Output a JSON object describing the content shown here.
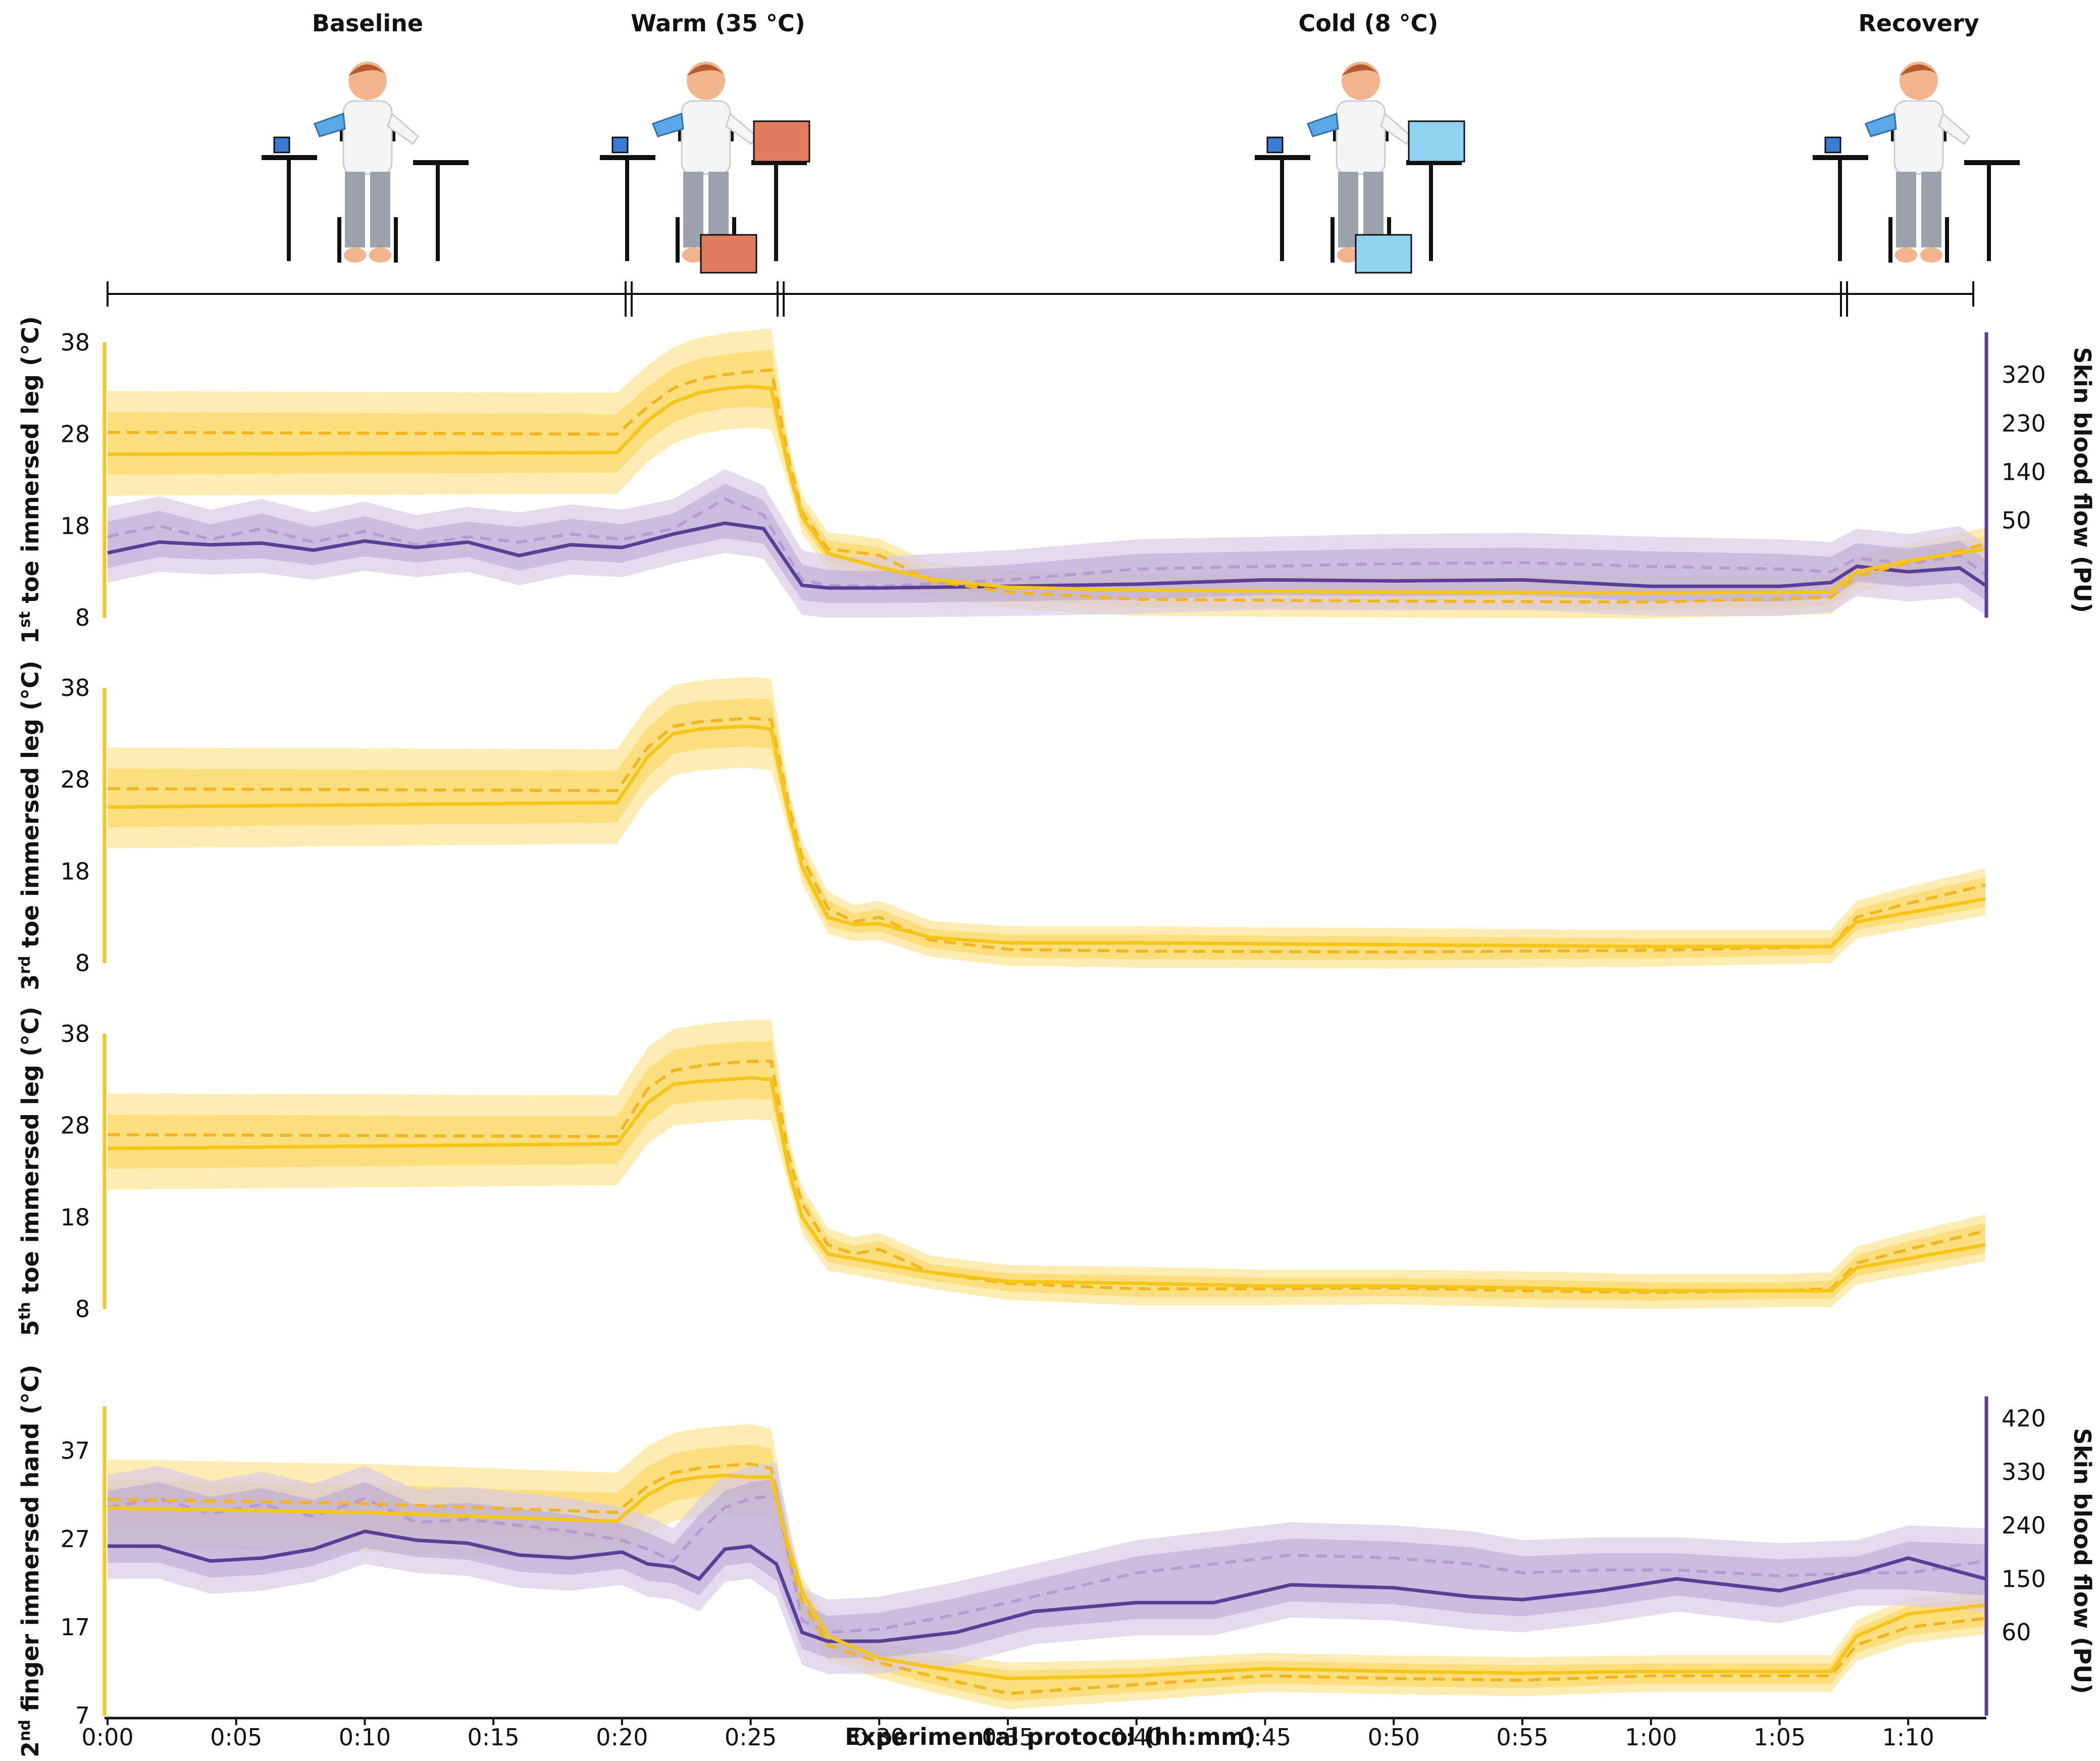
{
  "phases": [
    {
      "label": "Baseline"
    },
    {
      "label": "Warm (35 °C)"
    },
    {
      "label": "Cold (8 °C)"
    },
    {
      "label": "Recovery"
    }
  ],
  "colors": {
    "temperature": "#F5C518",
    "temp_band_light": "#FDE79A",
    "temp_band_dark": "#F9D45A",
    "blood_flow": "#5B3E96",
    "bf_band_light": "#D9CCE8",
    "bf_band_dark": "#B7A4D4",
    "bf_dashed": "#B79BD0"
  },
  "x_axis": {
    "title": "Experimental protocol (hh:mm)",
    "ticks": [
      "0:00",
      "0:05",
      "0:10",
      "0:15",
      "0:20",
      "0:25",
      "0:30",
      "0:35",
      "0:40",
      "0:45",
      "0:50",
      "0:55",
      "1:00",
      "1:05",
      "1:10"
    ],
    "range_min": [
      0,
      73
    ]
  },
  "chart_data": [
    {
      "type": "line",
      "title": "",
      "ylabel": "1st toe immersed leg (°C)",
      "ylabel_main": "1",
      "ylabel_sup": "st",
      "ylabel_rest": " toe immersed leg (°C)",
      "ylim": [
        8,
        38
      ],
      "yticks": [
        "38",
        "28",
        "18",
        "8"
      ],
      "x_minutes": [
        0,
        19.8,
        21,
        22,
        23,
        24,
        25,
        25.8,
        26.5,
        27,
        28,
        30,
        32,
        35,
        40,
        50,
        60,
        67,
        68,
        70,
        73
      ],
      "series": [
        {
          "name": "Temperature solid",
          "values": [
            25.8,
            26.0,
            29.5,
            31.5,
            32.5,
            33.0,
            33.2,
            33.0,
            24.0,
            19.0,
            15.0,
            13.5,
            12.2,
            11.3,
            11.0,
            10.8,
            10.7,
            10.8,
            13.0,
            14.2,
            15.5
          ]
        },
        {
          "name": "Temperature dashed",
          "values": [
            28.2,
            28.0,
            31.0,
            33.0,
            34.0,
            34.5,
            34.8,
            35.0,
            25.0,
            19.5,
            15.5,
            14.8,
            12.0,
            10.8,
            10.0,
            9.8,
            9.7,
            10.2,
            12.5,
            14.0,
            16.0
          ]
        }
      ],
      "secondary_axis": {
        "ylabel": "Skin blood flow (PU)",
        "yticks": [
          "320",
          "230",
          "140",
          "50"
        ],
        "ylim": [
          -130,
          380
        ]
      },
      "bf_x_minutes": [
        0,
        2,
        4,
        6,
        8,
        10,
        12,
        14,
        16,
        18,
        20,
        22,
        24,
        25.5,
        27,
        28,
        30,
        35,
        40,
        45,
        50,
        55,
        60,
        65,
        67,
        68,
        70,
        72,
        73
      ],
      "bf_series": [
        {
          "name": "Blood flow solid",
          "values": [
            -10,
            10,
            5,
            8,
            -5,
            12,
            0,
            10,
            -15,
            5,
            0,
            25,
            45,
            35,
            -70,
            -75,
            -75,
            -72,
            -68,
            -60,
            -62,
            -60,
            -72,
            -72,
            -65,
            -35,
            -45,
            -38,
            -70
          ]
        },
        {
          "name": "Blood flow dashed",
          "values": [
            20,
            40,
            15,
            35,
            10,
            30,
            5,
            20,
            10,
            25,
            15,
            35,
            90,
            60,
            -60,
            -70,
            -72,
            -60,
            -40,
            -35,
            -30,
            -28,
            -35,
            -40,
            -45,
            -20,
            -30,
            -15,
            -50
          ]
        }
      ]
    },
    {
      "type": "line",
      "title": "",
      "ylabel": "3rd toe immersed leg (°C)",
      "ylabel_main": "3",
      "ylabel_sup": "rd",
      "ylabel_rest": " toe immersed leg (°C)",
      "ylim": [
        8,
        38
      ],
      "yticks": [
        "38",
        "28",
        "18",
        "8"
      ],
      "x_minutes": [
        0,
        19.8,
        21,
        22,
        23,
        24,
        25,
        25.8,
        26.5,
        27,
        28,
        29,
        30,
        32,
        35,
        40,
        50,
        60,
        67,
        68,
        70,
        73
      ],
      "series": [
        {
          "name": "Temperature solid",
          "values": [
            25.0,
            25.5,
            30.5,
            33.0,
            33.5,
            33.7,
            33.8,
            33.5,
            24.0,
            18.5,
            13.0,
            12.2,
            12.3,
            10.8,
            10.2,
            10.2,
            10.0,
            9.8,
            9.8,
            12.5,
            13.5,
            15.0
          ]
        },
        {
          "name": "Temperature dashed",
          "values": [
            27.0,
            26.8,
            31.5,
            33.8,
            34.3,
            34.5,
            34.7,
            34.5,
            25.0,
            19.5,
            14.0,
            12.5,
            13.0,
            10.5,
            9.5,
            9.3,
            9.2,
            9.4,
            9.8,
            13.0,
            14.5,
            16.5
          ]
        }
      ]
    },
    {
      "type": "line",
      "title": "",
      "ylabel": "5th toe immersed leg (°C)",
      "ylabel_main": "5",
      "ylabel_sup": "th",
      "ylabel_rest": " toe immersed leg (°C)",
      "ylim": [
        8,
        38
      ],
      "yticks": [
        "38",
        "28",
        "18",
        "8"
      ],
      "x_minutes": [
        0,
        19.8,
        21,
        22,
        23,
        24,
        25,
        25.8,
        26.5,
        27,
        28,
        29,
        30,
        32,
        35,
        40,
        45,
        50,
        55,
        60,
        65,
        67,
        68,
        70,
        73
      ],
      "series": [
        {
          "name": "Temperature solid",
          "values": [
            25.5,
            26.0,
            30.5,
            32.5,
            32.8,
            33.0,
            33.2,
            33.0,
            23.0,
            18.0,
            14.0,
            13.5,
            13.0,
            12.0,
            11.0,
            10.8,
            10.5,
            10.5,
            10.3,
            10.0,
            10.0,
            10.0,
            12.5,
            13.5,
            15.0
          ]
        },
        {
          "name": "Temperature dashed",
          "values": [
            27.0,
            26.8,
            32.0,
            34.0,
            34.5,
            34.8,
            35.0,
            35.0,
            24.5,
            19.5,
            15.0,
            14.0,
            14.5,
            12.0,
            10.8,
            10.2,
            10.2,
            10.3,
            10.0,
            9.8,
            10.0,
            10.2,
            13.0,
            14.5,
            16.5
          ]
        }
      ]
    },
    {
      "type": "line",
      "title": "",
      "ylabel": "2nd finger immersed hand (°C)",
      "ylabel_main": "2",
      "ylabel_sup": "nd",
      "ylabel_rest": " finger immersed hand (°C)",
      "ylim": [
        7,
        42
      ],
      "yticks": [
        "37",
        "27",
        "17",
        "7"
      ],
      "x_minutes": [
        0,
        10,
        19.8,
        21,
        22,
        23,
        24,
        25,
        25.8,
        26.5,
        27,
        28,
        30,
        32,
        35,
        40,
        45,
        50,
        55,
        60,
        65,
        67,
        68,
        70,
        73
      ],
      "series": [
        {
          "name": "Temperature solid",
          "values": [
            30.5,
            30.0,
            29.0,
            32.0,
            33.5,
            34.0,
            34.2,
            34.0,
            34.0,
            26.0,
            21.0,
            16.0,
            13.5,
            12.5,
            11.2,
            11.5,
            12.3,
            12.0,
            11.8,
            12.0,
            12.0,
            12.0,
            16.0,
            18.5,
            19.5
          ]
        },
        {
          "name": "Temperature dashed",
          "values": [
            31.5,
            31.0,
            30.0,
            33.0,
            34.5,
            35.0,
            35.3,
            35.5,
            35.0,
            25.0,
            20.0,
            15.0,
            13.0,
            11.5,
            9.5,
            10.5,
            11.5,
            11.2,
            11.0,
            11.5,
            11.5,
            11.5,
            15.0,
            17.0,
            18.0
          ]
        }
      ],
      "secondary_axis": {
        "ylabel": "Skin blood flow (PU)",
        "yticks": [
          "420",
          "330",
          "240",
          "150",
          "60"
        ],
        "ylim": [
          -80,
          440
        ]
      },
      "bf_x_minutes": [
        0,
        2,
        4,
        6,
        8,
        10,
        12,
        14,
        16,
        18,
        20,
        21,
        22,
        23,
        24,
        25,
        26,
        27,
        28,
        30,
        33,
        36,
        40,
        43,
        46,
        50,
        53,
        55,
        58,
        61,
        65,
        68,
        70,
        73
      ],
      "bf_series": [
        {
          "name": "Blood flow solid",
          "values": [
            205,
            205,
            180,
            185,
            200,
            230,
            215,
            210,
            190,
            185,
            195,
            175,
            170,
            150,
            200,
            205,
            175,
            60,
            45,
            45,
            60,
            95,
            110,
            110,
            140,
            135,
            120,
            115,
            130,
            150,
            130,
            160,
            185,
            150
          ]
        },
        {
          "name": "Blood flow dashed",
          "values": [
            270,
            285,
            260,
            275,
            255,
            285,
            245,
            250,
            240,
            230,
            215,
            200,
            180,
            230,
            270,
            285,
            290,
            80,
            60,
            65,
            90,
            120,
            160,
            175,
            190,
            185,
            175,
            160,
            165,
            165,
            155,
            160,
            160,
            180
          ]
        }
      ]
    }
  ]
}
